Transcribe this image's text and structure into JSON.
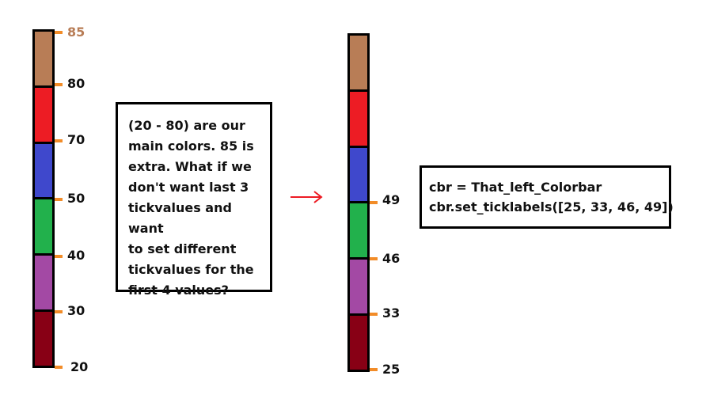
{
  "left_colorbar": {
    "colors": [
      "#b87d56",
      "#ed1c24",
      "#3f48cc",
      "#22b14c",
      "#a349a4",
      "#880015"
    ],
    "ticks": [
      {
        "label": "85",
        "extra": true
      },
      {
        "label": "80",
        "extra": false
      },
      {
        "label": "70",
        "extra": false
      },
      {
        "label": "50",
        "extra": false
      },
      {
        "label": "40",
        "extra": false
      },
      {
        "label": "30",
        "extra": false
      },
      {
        "label": "20",
        "extra": false
      }
    ]
  },
  "note": {
    "lines": [
      "(20 - 80) are our",
      "main colors. 85 is",
      "extra. What if we",
      "don't want last 3",
      "tickvalues and want",
      "to set different",
      "tickvalues for the",
      "first 4 values?"
    ]
  },
  "arrow": {
    "color": "#ed1c24"
  },
  "right_colorbar": {
    "colors": [
      "#b87d56",
      "#ed1c24",
      "#3f48cc",
      "#22b14c",
      "#a349a4",
      "#880015"
    ],
    "ticks": [
      "49",
      "46",
      "33",
      "25"
    ]
  },
  "code": {
    "lines": [
      "cbr = That_left_Colorbar",
      "cbr.set_ticklabels([25, 33, 46, 49])"
    ]
  }
}
